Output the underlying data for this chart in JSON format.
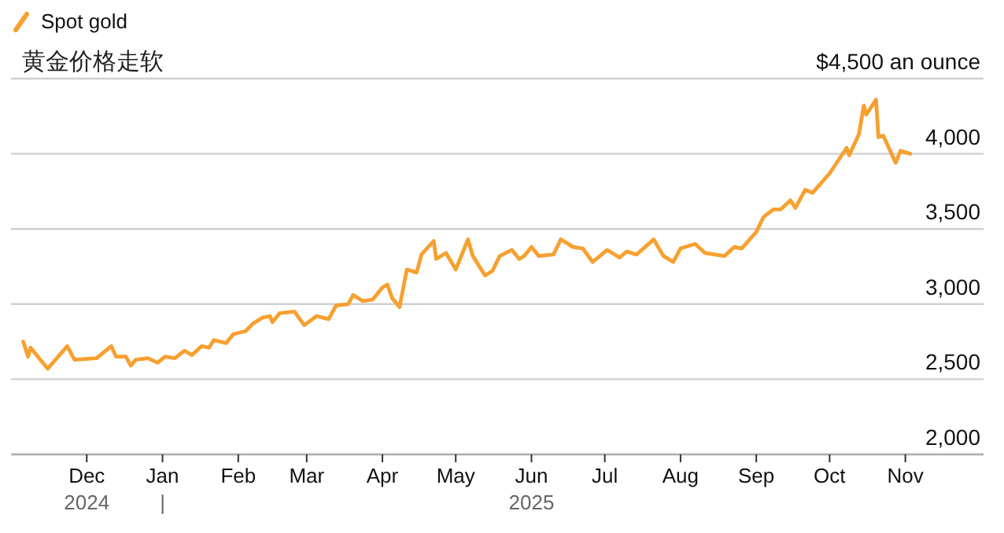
{
  "chart_data": {
    "type": "line",
    "title": "黄金价格走软",
    "legend": "top left",
    "grid": "y",
    "xlim": [
      "2024-10-31",
      "2025-12-03"
    ],
    "ylim": [
      2000,
      4500
    ],
    "yticks": [
      {
        "value": 2000,
        "label": "2,000"
      },
      {
        "value": 2500,
        "label": "2,500"
      },
      {
        "value": 3000,
        "label": "3,000"
      },
      {
        "value": 3500,
        "label": "3,500"
      },
      {
        "value": 4000,
        "label": "4,000"
      },
      {
        "value": 4500,
        "label": "$4,500 an ounce"
      }
    ],
    "xticks": [
      {
        "value": "2024-12-01",
        "label": "Dec\n2024"
      },
      {
        "value": "2025-01-01",
        "label": "Jan\n|"
      },
      {
        "value": "2025-02-01",
        "label": "Feb"
      },
      {
        "value": "2025-03-01",
        "label": "Mar"
      },
      {
        "value": "2025-04-01",
        "label": "Apr"
      },
      {
        "value": "2025-05-01",
        "label": "May"
      },
      {
        "value": "2025-06-01",
        "label": "Jun\n2025"
      },
      {
        "value": "2025-07-01",
        "label": "Jul"
      },
      {
        "value": "2025-08-01",
        "label": "Aug"
      },
      {
        "value": "2025-09-01",
        "label": "Sep"
      },
      {
        "value": "2025-10-01",
        "label": "Oct"
      },
      {
        "value": "2025-11-01",
        "label": "Nov"
      }
    ],
    "series": [
      {
        "name": "Spot gold",
        "color": "#f7a030",
        "x": [
          "2024-11-05",
          "2024-11-07",
          "2024-11-08",
          "2024-11-15",
          "2024-11-23",
          "2024-11-26",
          "2024-12-05",
          "2024-12-11",
          "2024-12-13",
          "2024-12-17",
          "2024-12-19",
          "2024-12-21",
          "2024-12-26",
          "2024-12-30",
          "2025-01-02",
          "2025-01-06",
          "2025-01-10",
          "2025-01-13",
          "2025-01-17",
          "2025-01-20",
          "2025-01-22",
          "2025-01-27",
          "2025-01-30",
          "2025-02-04",
          "2025-02-07",
          "2025-02-11",
          "2025-02-14",
          "2025-02-15",
          "2025-02-18",
          "2025-02-24",
          "2025-02-28",
          "2025-03-05",
          "2025-03-10",
          "2025-03-13",
          "2025-03-18",
          "2025-03-20",
          "2025-03-24",
          "2025-03-28",
          "2025-04-01",
          "2025-04-03",
          "2025-04-05",
          "2025-04-08",
          "2025-04-11",
          "2025-04-15",
          "2025-04-17",
          "2025-04-22",
          "2025-04-23",
          "2025-04-27",
          "2025-05-01",
          "2025-05-06",
          "2025-05-08",
          "2025-05-13",
          "2025-05-16",
          "2025-05-19",
          "2025-05-24",
          "2025-05-27",
          "2025-05-29",
          "2025-06-01",
          "2025-06-04",
          "2025-06-10",
          "2025-06-13",
          "2025-06-18",
          "2025-06-22",
          "2025-06-26",
          "2025-07-02",
          "2025-07-07",
          "2025-07-10",
          "2025-07-14",
          "2025-07-21",
          "2025-07-25",
          "2025-07-29",
          "2025-08-01",
          "2025-08-07",
          "2025-08-11",
          "2025-08-19",
          "2025-08-23",
          "2025-08-26",
          "2025-09-01",
          "2025-09-04",
          "2025-09-08",
          "2025-09-11",
          "2025-09-15",
          "2025-09-17",
          "2025-09-21",
          "2025-09-24",
          "2025-10-01",
          "2025-10-08",
          "2025-10-09",
          "2025-10-13",
          "2025-10-15",
          "2025-10-16",
          "2025-10-20",
          "2025-10-21",
          "2025-10-23",
          "2025-10-28",
          "2025-10-30",
          "2025-11-03"
        ],
        "values": [
          2750,
          2650,
          2710,
          2570,
          2720,
          2630,
          2640,
          2720,
          2650,
          2650,
          2590,
          2630,
          2640,
          2610,
          2650,
          2640,
          2690,
          2660,
          2720,
          2710,
          2760,
          2740,
          2800,
          2820,
          2870,
          2910,
          2920,
          2880,
          2940,
          2950,
          2860,
          2920,
          2900,
          2990,
          3000,
          3060,
          3020,
          3030,
          3110,
          3130,
          3040,
          2980,
          3230,
          3210,
          3330,
          3420,
          3300,
          3340,
          3230,
          3430,
          3320,
          3190,
          3220,
          3320,
          3360,
          3300,
          3320,
          3380,
          3320,
          3330,
          3430,
          3380,
          3370,
          3280,
          3360,
          3310,
          3350,
          3330,
          3430,
          3320,
          3280,
          3370,
          3400,
          3340,
          3320,
          3380,
          3370,
          3480,
          3580,
          3630,
          3630,
          3690,
          3640,
          3760,
          3740,
          3870,
          4040,
          3990,
          4130,
          4320,
          4260,
          4360,
          4110,
          4120,
          3940,
          4020,
          4000
        ]
      }
    ]
  }
}
